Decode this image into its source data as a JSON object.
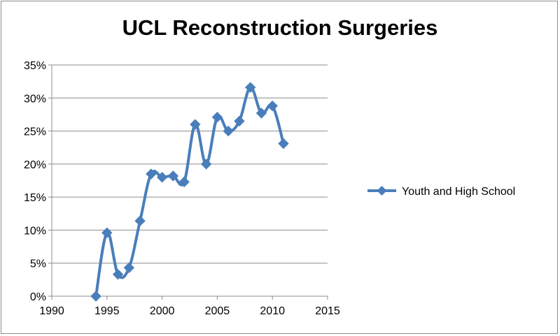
{
  "chart_data": {
    "type": "line",
    "title": "UCL Reconstruction Surgeries",
    "xlabel": "",
    "ylabel": "",
    "xlim": [
      1990,
      2015
    ],
    "ylim": [
      0,
      0.35
    ],
    "x_ticks": [
      1990,
      1995,
      2000,
      2005,
      2010,
      2015
    ],
    "x_tick_labels": [
      "1990",
      "1995",
      "2000",
      "2005",
      "2010",
      "2015"
    ],
    "y_ticks": [
      0,
      0.05,
      0.1,
      0.15,
      0.2,
      0.25,
      0.3,
      0.35
    ],
    "y_tick_labels": [
      "0%",
      "5%",
      "10%",
      "15%",
      "20%",
      "25%",
      "30%",
      "35%"
    ],
    "grid": "horizontal",
    "legend_position": "right",
    "series": [
      {
        "name": "Youth and High School",
        "color": "#4a7ebb",
        "marker": "diamond",
        "x": [
          1994,
          1995,
          1996,
          1997,
          1998,
          1999,
          2000,
          2001,
          2002,
          2003,
          2004,
          2005,
          2006,
          2007,
          2008,
          2009,
          2010,
          2011
        ],
        "y": [
          0.0,
          0.096,
          0.033,
          0.043,
          0.114,
          0.185,
          0.18,
          0.182,
          0.173,
          0.26,
          0.2,
          0.271,
          0.25,
          0.265,
          0.316,
          0.277,
          0.288,
          0.231
        ]
      }
    ]
  }
}
